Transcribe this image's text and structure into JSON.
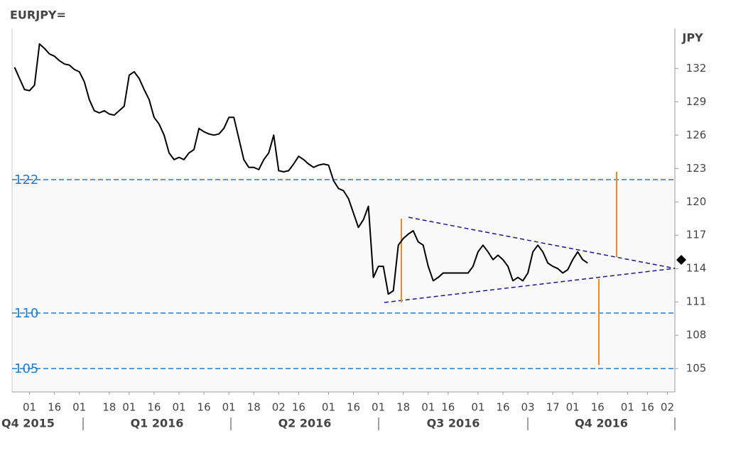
{
  "chart_data": {
    "type": "line",
    "title": "EURJPY=",
    "y_label": "JPY",
    "categories": [
      null,
      null,
      null,
      "01",
      null,
      null,
      null,
      null,
      "16",
      null,
      null,
      null,
      null,
      "01",
      null,
      null,
      null,
      null,
      null,
      "18",
      null,
      null,
      null,
      "01",
      null,
      null,
      null,
      null,
      "16",
      null,
      null,
      null,
      null,
      "01",
      null,
      null,
      null,
      null,
      "16",
      null,
      null,
      null,
      null,
      "01",
      null,
      null,
      null,
      null,
      "18",
      null,
      null,
      null,
      null,
      "02",
      null,
      null,
      null,
      "16",
      null,
      null,
      null,
      null,
      null,
      "01",
      null,
      null,
      null,
      null,
      "16",
      null,
      null,
      null,
      null,
      "01",
      null,
      null,
      null,
      null,
      "18",
      null,
      null,
      null,
      null,
      "01",
      null,
      null,
      null,
      "16",
      null,
      null,
      null,
      null,
      null,
      "01",
      null,
      null,
      null,
      null,
      "16",
      null,
      null,
      null,
      null,
      "03",
      null,
      null,
      null,
      null,
      "17",
      null,
      null,
      null,
      "01",
      null,
      null,
      null,
      null,
      "16",
      null,
      null,
      null,
      null,
      null,
      "01",
      null,
      null,
      null,
      "16",
      null,
      null,
      null,
      "02",
      null
    ],
    "quarters": [
      "Q4 2015",
      "Q1 2016",
      "Q2 2016",
      "Q3 2016",
      "Q4 2016"
    ],
    "series": [
      {
        "name": "EURJPY=",
        "color": "#000000",
        "values": [
          132.1,
          131.1,
          130.1,
          130,
          130.5,
          134.2,
          133.8,
          133.3,
          133.1,
          132.7,
          132.4,
          132.3,
          131.9,
          131.7,
          130.8,
          129.2,
          128.2,
          128,
          128.2,
          127.9,
          127.8,
          128.2,
          128.6,
          131.4,
          131.7,
          131.1,
          130.1,
          129.2,
          127.6,
          127,
          126,
          124.4,
          123.8,
          124,
          123.8,
          124.4,
          124.7,
          126.6,
          126.3,
          126.1,
          126,
          126.1,
          126.6,
          127.6,
          127.6,
          125.7,
          123.8,
          123.1,
          123.1,
          122.9,
          123.8,
          124.4,
          126,
          122.8,
          122.7,
          122.8,
          123.4,
          124.1,
          123.8,
          123.4,
          123.1,
          123.3,
          123.4,
          123.3,
          121.9,
          121.2,
          121,
          120.3,
          119,
          117.7,
          118.4,
          119.6,
          113.2,
          114.2,
          114.2,
          111.7,
          112,
          116.1,
          116.7,
          117.1,
          117.4,
          116.4,
          116.1,
          114.2,
          112.9,
          113.2,
          113.6,
          113.6,
          113.6,
          113.6,
          113.6,
          113.6,
          114.2,
          115.5,
          116.1,
          115.5,
          114.8,
          115.2,
          114.8,
          114.2,
          112.9,
          113.2,
          112.9,
          113.6,
          115.5,
          116.1,
          115.5,
          114.5,
          114.2,
          114,
          113.6,
          113.9,
          114.8,
          115.5,
          114.8,
          114.5,
          null,
          null,
          null,
          null,
          null,
          null,
          null,
          null,
          null,
          null,
          null,
          null,
          null,
          null,
          null,
          null,
          null
        ]
      }
    ],
    "ylim": [
      102.9,
      135.6
    ],
    "yticks": [
      105,
      108,
      111,
      114,
      117,
      120,
      123,
      126,
      129,
      132
    ],
    "hlines": [
      122,
      110,
      105
    ],
    "hline_color": "#1a7fd4"
  }
}
